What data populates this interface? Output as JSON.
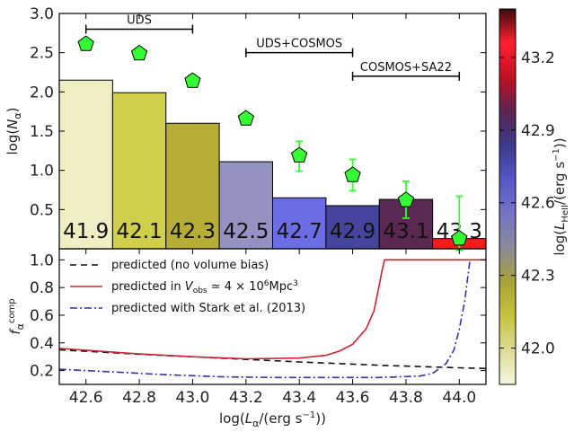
{
  "colorbar": {
    "label": "log(L_HeII/(erg s^-1))",
    "ticks": [
      "42.0",
      "42.3",
      "42.6",
      "42.9",
      "43.2"
    ],
    "range": [
      41.85,
      43.4
    ],
    "stops": [
      "#f7f6e2",
      "#dcdc95",
      "#c5c43e",
      "#a9a236",
      "#8a8a9a",
      "#7474c6",
      "#5656c8",
      "#3a3a8c",
      "#5b2450",
      "#c01020",
      "#ff2030",
      "#3a0a0a"
    ]
  },
  "chart_data": [
    {
      "type": "bar",
      "ylabel": "log(N_α)",
      "ylim": [
        0,
        3.0
      ],
      "yticks": [
        "0.5",
        "1.0",
        "1.5",
        "2.0",
        "2.5",
        "3.0"
      ],
      "grid": false,
      "bars": [
        {
          "label": "41.9",
          "x0": 42.5,
          "x1": 42.7,
          "value": 2.15,
          "color": "#f0efc4"
        },
        {
          "label": "42.1",
          "x0": 42.7,
          "x1": 42.9,
          "value": 1.99,
          "color": "#cfcf4c"
        },
        {
          "label": "42.3",
          "x0": 42.9,
          "x1": 43.1,
          "value": 1.6,
          "color": "#b5ad36"
        },
        {
          "label": "42.5",
          "x0": 43.1,
          "x1": 43.3,
          "value": 1.11,
          "color": "#9392c0"
        },
        {
          "label": "42.7",
          "x0": 43.3,
          "x1": 43.5,
          "value": 0.65,
          "color": "#6c6ce4"
        },
        {
          "label": "42.9",
          "x0": 43.5,
          "x1": 43.7,
          "value": 0.55,
          "color": "#45459e"
        },
        {
          "label": "43.1",
          "x0": 43.7,
          "x1": 43.9,
          "value": 0.63,
          "color": "#5a2850"
        },
        {
          "label": "43.3",
          "x0": 43.9,
          "x1": 44.1,
          "value": 0.13,
          "color": "#ff1a1a"
        }
      ],
      "points": {
        "marker": "pentagon",
        "color": "#33ff33",
        "x": [
          42.6,
          42.8,
          43.0,
          43.2,
          43.4,
          43.6,
          43.8,
          44.0
        ],
        "y": [
          2.61,
          2.49,
          2.14,
          1.66,
          1.19,
          0.94,
          0.62,
          0.13
        ],
        "err_lo": [
          0.04,
          0.06,
          0.08,
          0.03,
          0.2,
          0.2,
          0.23,
          0.15
        ],
        "err_hi": [
          0.04,
          0.06,
          0.08,
          0.03,
          0.18,
          0.2,
          0.24,
          0.54
        ]
      },
      "surveys": [
        {
          "label": "UDS",
          "x0": 42.6,
          "x1": 43.0,
          "y": 2.8
        },
        {
          "label": "UDS+COSMOS",
          "x0": 43.2,
          "x1": 43.6,
          "y": 2.5
        },
        {
          "label": "COSMOS+SA22",
          "x0": 43.6,
          "x1": 44.0,
          "y": 2.2
        }
      ]
    },
    {
      "type": "line",
      "xlabel": "log(L_α/(erg s^-1))",
      "ylabel": "f_α^comp",
      "xlim": [
        42.5,
        44.1
      ],
      "ylim": [
        0.1,
        1.08
      ],
      "xticks": [
        "42.6",
        "42.8",
        "43.0",
        "43.2",
        "43.4",
        "43.6",
        "43.8",
        "44.0"
      ],
      "yticks": [
        "0.2",
        "0.4",
        "0.6",
        "0.8",
        "1.0"
      ],
      "legend_position": "upper-left",
      "series": [
        {
          "name": "predicted (no volume bias)",
          "style": "dashed",
          "color": "#111111",
          "x": [
            42.5,
            42.8,
            43.1,
            43.4,
            43.7,
            44.0,
            44.1
          ],
          "y": [
            0.35,
            0.318,
            0.29,
            0.262,
            0.238,
            0.22,
            0.215
          ]
        },
        {
          "name": "predicted in V_obs ≃ 4 × 10^6 Mpc^3",
          "style": "solid",
          "color": "#cc2233",
          "x": [
            42.5,
            42.8,
            43.0,
            43.2,
            43.4,
            43.5,
            43.55,
            43.6,
            43.65,
            43.68,
            43.7,
            43.71,
            43.72,
            44.1
          ],
          "y": [
            0.36,
            0.32,
            0.3,
            0.285,
            0.29,
            0.31,
            0.34,
            0.39,
            0.5,
            0.63,
            0.82,
            0.92,
            1.0,
            1.0
          ]
        },
        {
          "name": "predicted with Stark et al. (2013)",
          "style": "dashdot",
          "color": "#3333aa",
          "x": [
            42.5,
            42.7,
            42.9,
            43.1,
            43.3,
            43.5,
            43.7,
            43.85,
            43.9,
            43.95,
            43.98,
            44.0,
            44.02,
            44.04
          ],
          "y": [
            0.21,
            0.19,
            0.17,
            0.155,
            0.15,
            0.15,
            0.15,
            0.16,
            0.18,
            0.25,
            0.35,
            0.5,
            0.7,
            1.0
          ]
        }
      ]
    }
  ]
}
